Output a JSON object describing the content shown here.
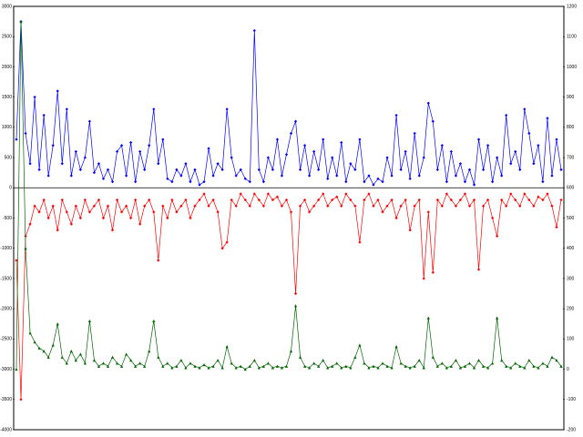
{
  "chart_data": {
    "type": "line",
    "ylim": [
      -4000,
      3000
    ],
    "yticks": [
      -4000,
      -3500,
      -3000,
      -2500,
      -2000,
      -1500,
      -1000,
      -500,
      0,
      500,
      1000,
      1500,
      2000,
      2500,
      3000
    ],
    "y2lim": [
      -200,
      1200
    ],
    "y2ticks": [
      -200,
      -100,
      0,
      100,
      200,
      300,
      400,
      500,
      600,
      700,
      800,
      900,
      1000,
      1100,
      1200
    ],
    "series": [
      {
        "color": "#0000ff",
        "marker": "diamond",
        "values": [
          800,
          2750,
          900,
          400,
          1500,
          300,
          1200,
          200,
          700,
          1600,
          400,
          1300,
          200,
          600,
          300,
          500,
          1100,
          250,
          400,
          150,
          300,
          100,
          600,
          700,
          200,
          750,
          100,
          600,
          300,
          700,
          1300,
          400,
          800,
          150,
          100,
          300,
          200,
          400,
          100,
          300,
          50,
          100,
          650,
          200,
          400,
          300,
          1300,
          500,
          200,
          300,
          150,
          100,
          2600,
          300,
          100,
          500,
          300,
          800,
          200,
          550,
          900,
          1100,
          300,
          700,
          200,
          600,
          300,
          800,
          150,
          500,
          200,
          750,
          100,
          400,
          300,
          800,
          100,
          200,
          50,
          150,
          100,
          500,
          200,
          1200,
          300,
          600,
          150,
          900,
          200,
          500,
          1400,
          1100,
          300,
          700,
          100,
          600,
          200,
          400,
          100,
          300,
          50,
          800,
          300,
          700,
          100,
          500,
          200,
          1200,
          400,
          600,
          300,
          1300,
          900,
          400,
          700,
          100,
          1150,
          200,
          800,
          300
        ]
      },
      {
        "color": "#ff0000",
        "marker": "diamond",
        "values": [
          -1200,
          -3500,
          -800,
          -600,
          -300,
          -400,
          -200,
          -500,
          -300,
          -700,
          -200,
          -400,
          -600,
          -300,
          -500,
          -200,
          -400,
          -300,
          -200,
          -500,
          -300,
          -700,
          -200,
          -400,
          -300,
          -500,
          -200,
          -600,
          -300,
          -200,
          -400,
          -1200,
          -300,
          -500,
          -200,
          -400,
          -300,
          -200,
          -500,
          -300,
          -200,
          -100,
          -300,
          -200,
          -400,
          -1000,
          -900,
          -200,
          -300,
          -100,
          -200,
          -300,
          -100,
          -200,
          -300,
          -100,
          -200,
          -150,
          -300,
          -200,
          -400,
          -1750,
          -300,
          -200,
          -400,
          -300,
          -200,
          -100,
          -300,
          -200,
          -150,
          -300,
          -100,
          -200,
          -300,
          -900,
          -200,
          -100,
          -300,
          -200,
          -400,
          -300,
          -200,
          -500,
          -300,
          -200,
          -700,
          -300,
          -200,
          -1500,
          -400,
          -1400,
          -200,
          -300,
          -100,
          -200,
          -300,
          -200,
          -100,
          -300,
          -200,
          -1350,
          -300,
          -200,
          -500,
          -800,
          -200,
          -300,
          -100,
          -200,
          -300,
          -100,
          -200,
          -300,
          -150,
          -200,
          -100,
          -300,
          -650,
          -200
        ]
      },
      {
        "color": "#006600",
        "marker": "triangle",
        "axis": "y2",
        "values": [
          0,
          1150,
          400,
          120,
          90,
          70,
          60,
          40,
          80,
          150,
          40,
          20,
          60,
          30,
          50,
          20,
          160,
          30,
          10,
          20,
          10,
          40,
          20,
          10,
          50,
          30,
          10,
          20,
          10,
          60,
          160,
          40,
          10,
          20,
          5,
          10,
          30,
          5,
          20,
          10,
          5,
          15,
          5,
          10,
          30,
          5,
          75,
          20,
          5,
          10,
          0,
          10,
          30,
          5,
          10,
          20,
          5,
          10,
          5,
          10,
          60,
          210,
          40,
          10,
          5,
          20,
          10,
          30,
          5,
          10,
          20,
          5,
          10,
          5,
          40,
          80,
          20,
          5,
          10,
          5,
          20,
          10,
          5,
          75,
          20,
          10,
          5,
          10,
          30,
          5,
          170,
          40,
          10,
          20,
          5,
          10,
          30,
          5,
          10,
          20,
          5,
          30,
          10,
          5,
          20,
          170,
          30,
          10,
          5,
          20,
          10,
          5,
          30,
          10,
          5,
          20,
          10,
          40,
          30,
          10
        ]
      }
    ]
  }
}
